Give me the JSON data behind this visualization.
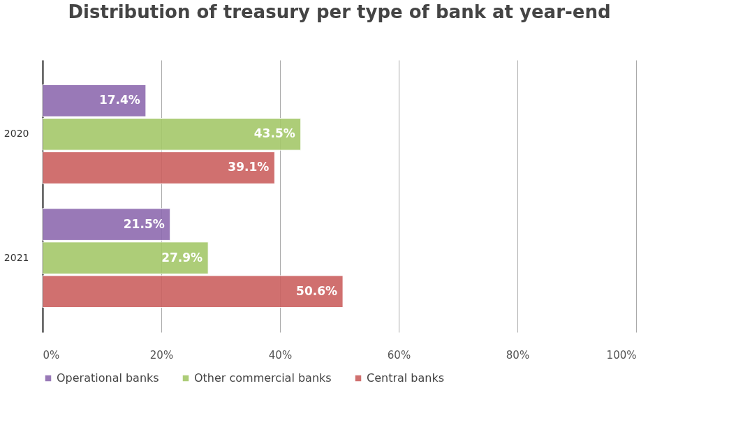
{
  "chart_data": {
    "type": "bar",
    "orientation": "horizontal",
    "title": "Distribution of treasury per type of bank at year-end",
    "categories": [
      "2020",
      "2021"
    ],
    "series": [
      {
        "name": "Operational banks",
        "color": "#8e6bb0",
        "values": [
          17.4,
          21.5
        ],
        "value_labels": [
          "17.4%",
          "21.5%"
        ]
      },
      {
        "name": "Other commercial banks",
        "color": "#a5c86a",
        "values": [
          43.5,
          27.9
        ],
        "value_labels": [
          "43.5%",
          "27.9%"
        ]
      },
      {
        "name": "Central banks",
        "color": "#cb6160",
        "values": [
          39.1,
          50.6
        ],
        "value_labels": [
          "39.1%",
          "50.6%"
        ]
      }
    ],
    "xlim": [
      0,
      100
    ],
    "xticks": [
      {
        "value": 0,
        "label": "0%"
      },
      {
        "value": 20,
        "label": "20%"
      },
      {
        "value": 40,
        "label": "40%"
      },
      {
        "value": 60,
        "label": "60%"
      },
      {
        "value": 80,
        "label": "80%"
      },
      {
        "value": 100,
        "label": "100%"
      }
    ],
    "grid": "x",
    "legend": "bottom"
  }
}
